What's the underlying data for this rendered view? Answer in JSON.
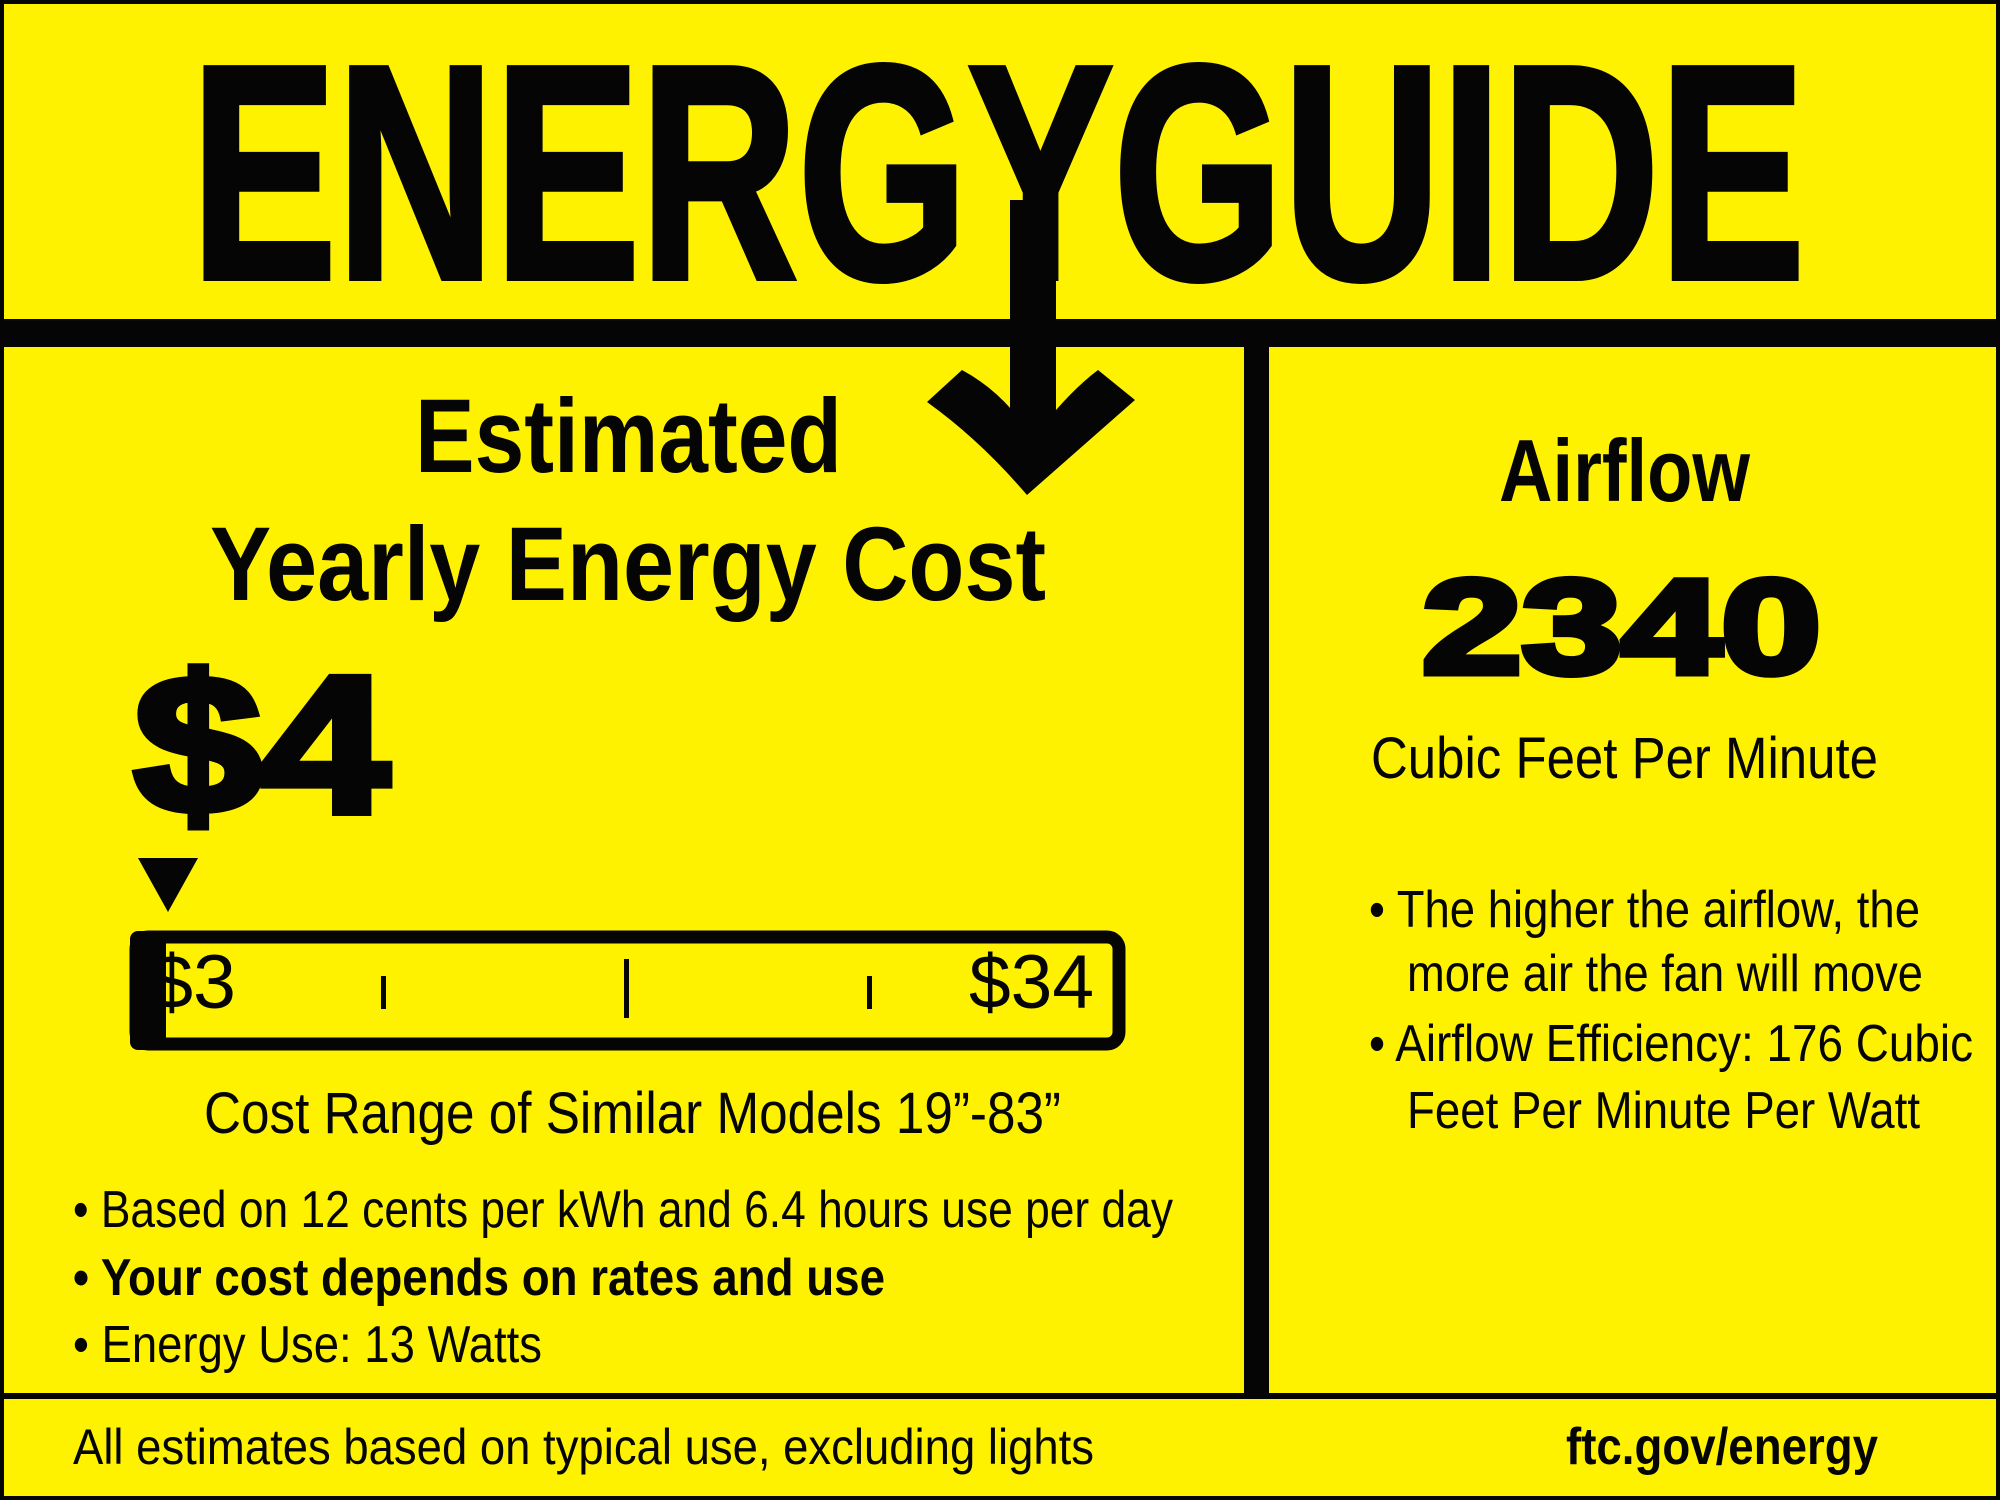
{
  "colors": {
    "background": "#fff200",
    "ink": "#050505"
  },
  "header": {
    "title": "ENERGYGUIDE",
    "icon": "down-arrow-icon"
  },
  "cost": {
    "heading_line1": "Estimated",
    "heading_line2": "Yearly Energy Cost",
    "value": "$4",
    "scale": {
      "min_label": "$3",
      "max_label": "$34",
      "min": 3,
      "max": 34,
      "marker_value": 4,
      "caption": "Cost Range of Similar Models 19”-83”"
    },
    "bullets": [
      "• Based on 12 cents per kWh and 6.4 hours use per day",
      "• Your cost depends on rates and use",
      "• Energy Use: 13 Watts"
    ]
  },
  "airflow": {
    "heading": "Airflow",
    "value": "2340",
    "unit": "Cubic Feet Per Minute",
    "bullets": [
      "• The higher the airflow, the",
      "more air the fan will move",
      "• Airflow Efficiency: 176 Cubic",
      "Feet Per Minute Per Watt"
    ]
  },
  "footer": {
    "note": "All estimates based on typical use, excluding lights",
    "link": "ftc.gov/energy"
  }
}
